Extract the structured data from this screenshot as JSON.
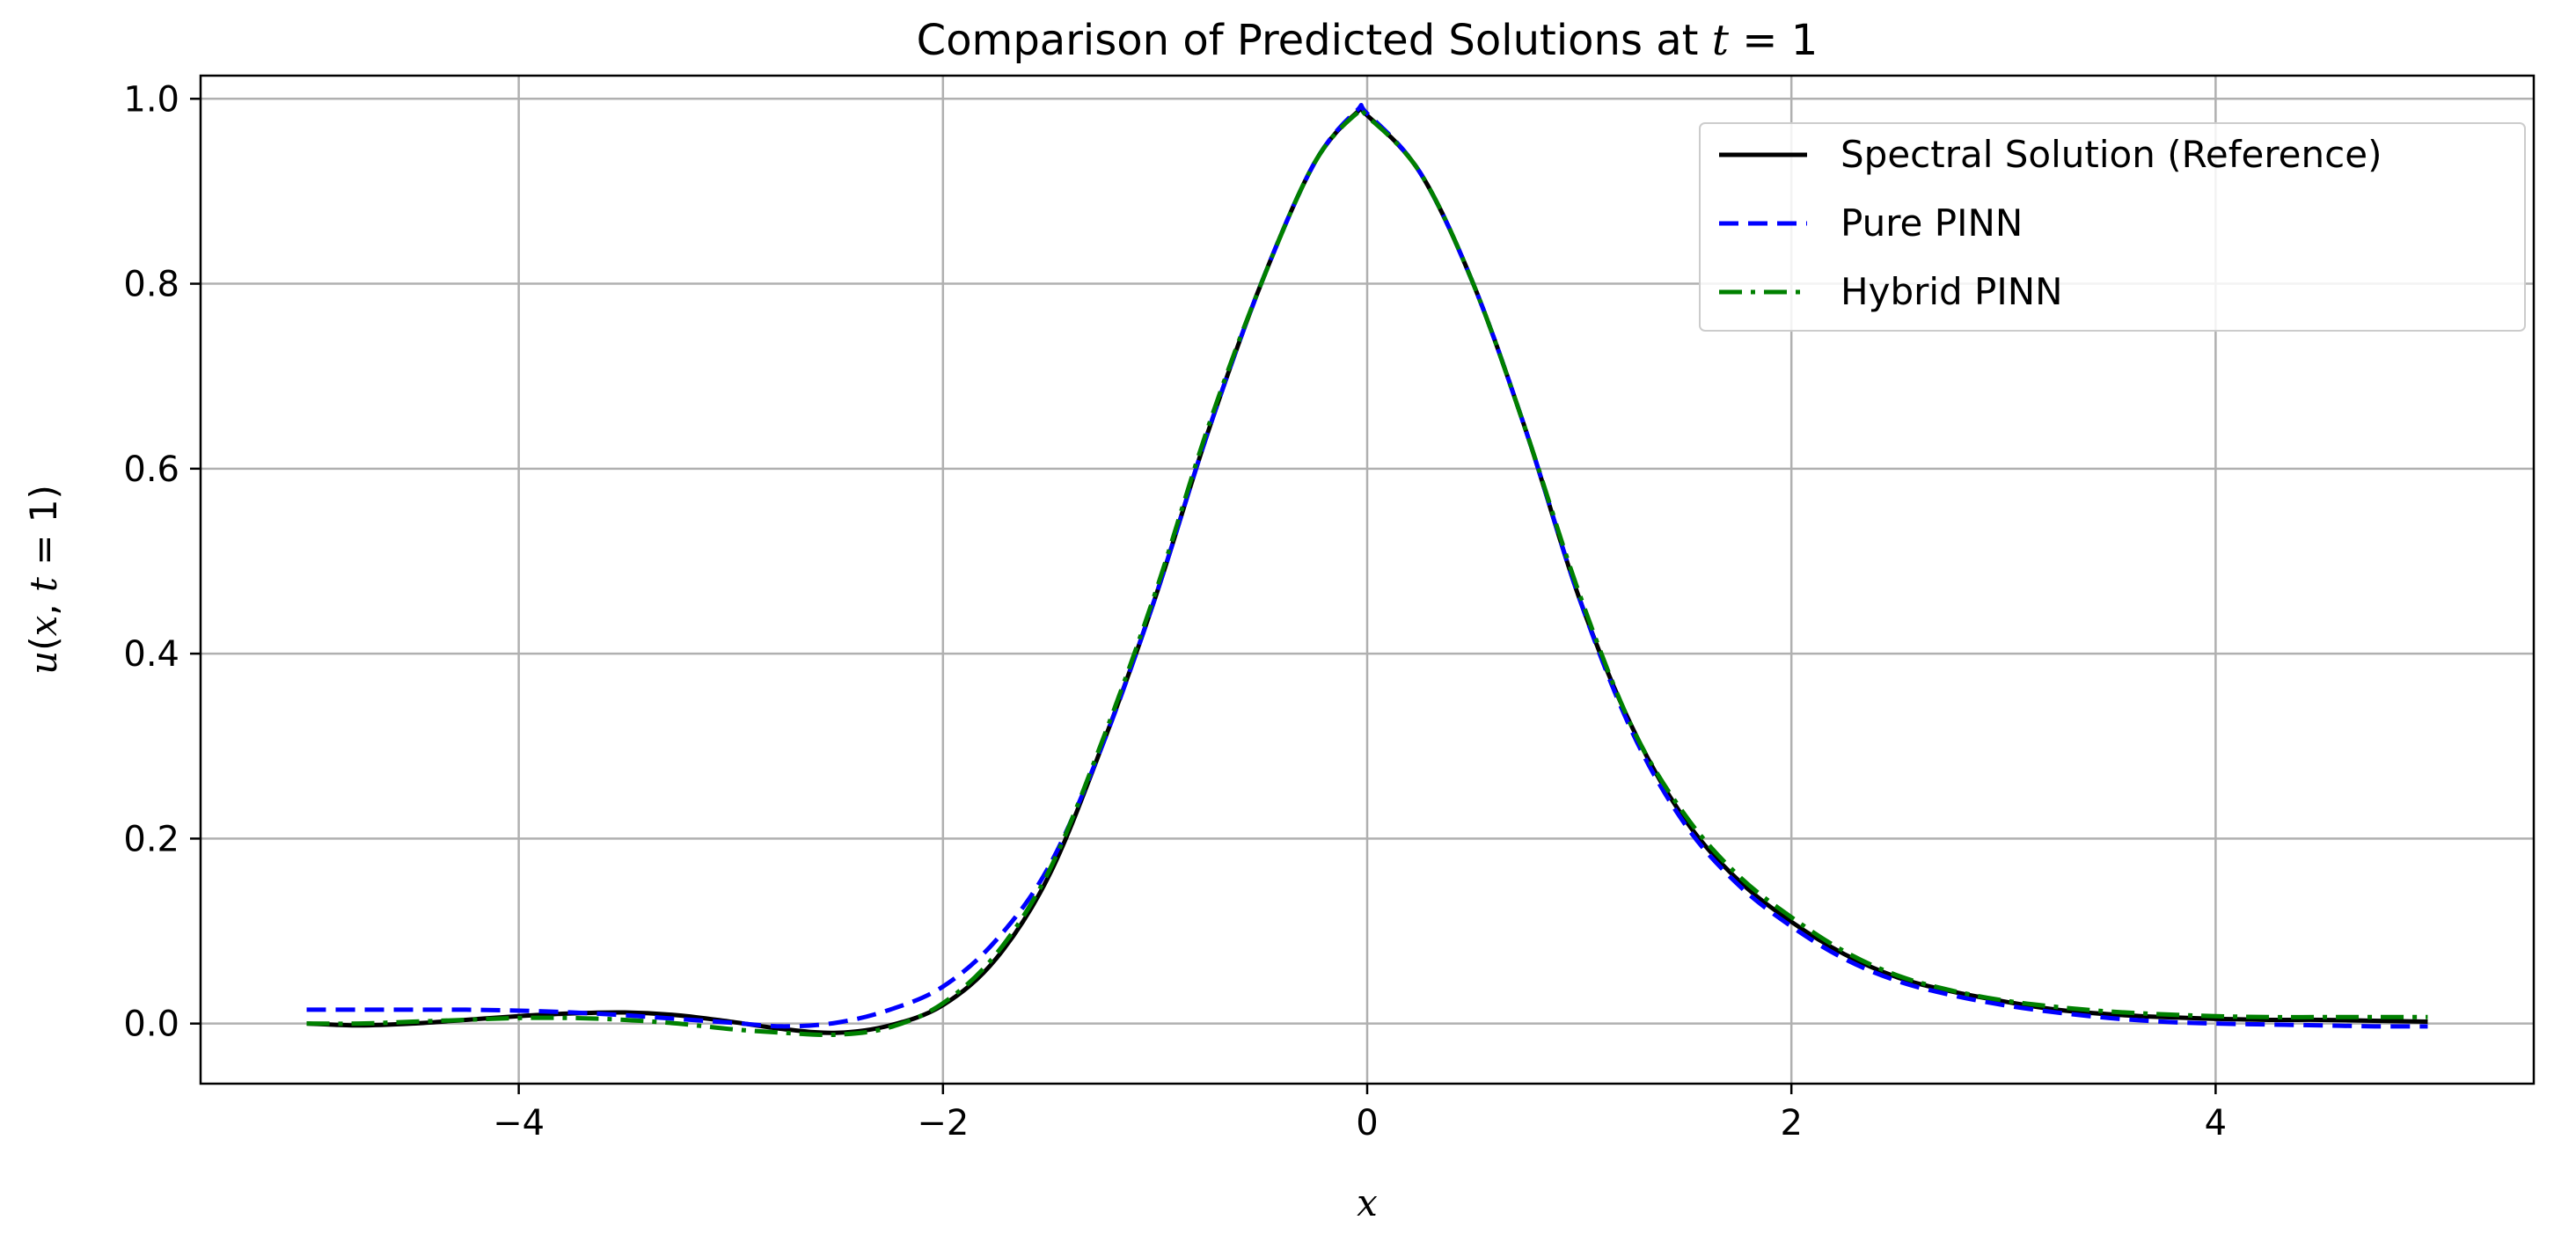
{
  "chart_data": {
    "type": "line",
    "title": {
      "prefix": "Comparison of Predicted Solutions at ",
      "math_var": "t",
      "math_rest": " = 1"
    },
    "xlabel": "x",
    "ylabel": {
      "var": "u",
      "open": "(",
      "arg1": "x",
      "sep": ", ",
      "arg2": "t",
      "eq": " = 1)"
    },
    "xlim": [
      -5.5,
      5.5
    ],
    "ylim": [
      -0.065,
      1.025
    ],
    "xticks": [
      -4,
      -2,
      0,
      2,
      4
    ],
    "xtick_labels": [
      "−4",
      "−2",
      "0",
      "2",
      "4"
    ],
    "yticks": [
      0.0,
      0.2,
      0.4,
      0.6,
      0.8,
      1.0
    ],
    "ytick_labels": [
      "0.0",
      "0.2",
      "0.4",
      "0.6",
      "0.8",
      "1.0"
    ],
    "grid": true,
    "legend_position": "top-right",
    "series": [
      {
        "name": "Spectral Solution (Reference)",
        "color": "#000000",
        "dash": "solid",
        "x": [
          -5.0,
          -4.75,
          -4.5,
          -4.25,
          -4.0,
          -3.75,
          -3.5,
          -3.25,
          -3.0,
          -2.75,
          -2.5,
          -2.25,
          -2.0,
          -1.75,
          -1.5,
          -1.25,
          -1.0,
          -0.75,
          -0.5,
          -0.25,
          -0.05,
          0.0,
          0.25,
          0.5,
          0.75,
          1.0,
          1.25,
          1.5,
          1.75,
          2.0,
          2.25,
          2.5,
          2.75,
          3.0,
          3.25,
          3.5,
          3.75,
          4.0,
          4.25,
          4.5,
          4.75,
          5.0
        ],
        "y": [
          0.0,
          -0.002,
          0.0,
          0.004,
          0.008,
          0.011,
          0.012,
          0.009,
          0.002,
          -0.006,
          -0.01,
          -0.002,
          0.02,
          0.07,
          0.16,
          0.3,
          0.46,
          0.64,
          0.8,
          0.93,
          0.985,
          0.982,
          0.92,
          0.8,
          0.64,
          0.46,
          0.32,
          0.22,
          0.155,
          0.11,
          0.075,
          0.05,
          0.035,
          0.024,
          0.015,
          0.01,
          0.007,
          0.005,
          0.004,
          0.004,
          0.003,
          0.002
        ]
      },
      {
        "name": "Pure PINN",
        "color": "#0000ff",
        "dash": "dashed",
        "x": [
          -5.0,
          -4.75,
          -4.5,
          -4.25,
          -4.0,
          -3.75,
          -3.5,
          -3.25,
          -3.0,
          -2.75,
          -2.5,
          -2.25,
          -2.0,
          -1.75,
          -1.5,
          -1.25,
          -1.0,
          -0.75,
          -0.5,
          -0.25,
          -0.05,
          0.0,
          0.25,
          0.5,
          0.75,
          1.0,
          1.25,
          1.5,
          1.75,
          2.0,
          2.25,
          2.5,
          2.75,
          3.0,
          3.25,
          3.5,
          3.75,
          4.0,
          4.25,
          4.5,
          4.75,
          5.0
        ],
        "y": [
          0.015,
          0.015,
          0.015,
          0.015,
          0.014,
          0.012,
          0.009,
          0.005,
          0.001,
          -0.003,
          0.001,
          0.015,
          0.04,
          0.09,
          0.17,
          0.3,
          0.46,
          0.64,
          0.8,
          0.93,
          0.987,
          0.984,
          0.92,
          0.8,
          0.64,
          0.46,
          0.315,
          0.215,
          0.15,
          0.105,
          0.07,
          0.046,
          0.031,
          0.02,
          0.012,
          0.006,
          0.002,
          0.0,
          -0.001,
          -0.002,
          -0.003,
          -0.003
        ]
      },
      {
        "name": "Hybrid PINN",
        "color": "#008000",
        "dash": "dashdot",
        "x": [
          -5.0,
          -4.75,
          -4.5,
          -4.25,
          -4.0,
          -3.75,
          -3.5,
          -3.25,
          -3.0,
          -2.75,
          -2.5,
          -2.25,
          -2.0,
          -1.75,
          -1.5,
          -1.25,
          -1.0,
          -0.75,
          -0.5,
          -0.25,
          -0.05,
          0.0,
          0.25,
          0.5,
          0.75,
          1.0,
          1.25,
          1.5,
          1.75,
          2.0,
          2.25,
          2.5,
          2.75,
          3.0,
          3.25,
          3.5,
          3.75,
          4.0,
          4.25,
          4.5,
          4.75,
          5.0
        ],
        "y": [
          0.0,
          0.0,
          0.002,
          0.004,
          0.006,
          0.006,
          0.004,
          0.0,
          -0.006,
          -0.01,
          -0.012,
          -0.004,
          0.022,
          0.075,
          0.165,
          0.305,
          0.465,
          0.645,
          0.8,
          0.93,
          0.984,
          0.981,
          0.92,
          0.8,
          0.64,
          0.465,
          0.32,
          0.225,
          0.16,
          0.115,
          0.078,
          0.052,
          0.036,
          0.025,
          0.018,
          0.013,
          0.01,
          0.008,
          0.007,
          0.007,
          0.007,
          0.007
        ]
      }
    ]
  }
}
